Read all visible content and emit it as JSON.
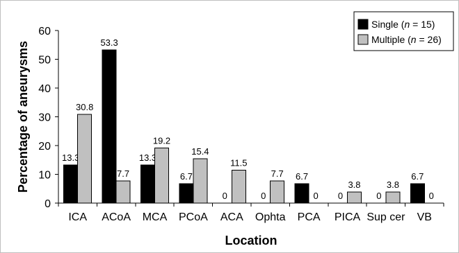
{
  "chart_data": {
    "type": "bar",
    "title": "",
    "xlabel": "Location",
    "ylabel": "Percentage of aneurysms",
    "ylim": [
      0,
      60
    ],
    "yticks": [
      0,
      10,
      20,
      30,
      40,
      50,
      60
    ],
    "legend_position": "top-right",
    "categories": [
      "ICA",
      "ACoA",
      "MCA",
      "PCoA",
      "ACA",
      "Ophta",
      "PCA",
      "PICA",
      "Sup cer",
      "VB"
    ],
    "series": [
      {
        "name": "Single (n = 15)",
        "legend_parts": {
          "prefix": "Single (",
          "italic": "n",
          "suffix": " = 15)"
        },
        "color": "#000000",
        "values": [
          13.3,
          53.3,
          13.3,
          6.7,
          0,
          0,
          6.7,
          0,
          0,
          6.7
        ],
        "labels": [
          "13.3",
          "53.3",
          "13.3",
          "6.7",
          "0",
          "0",
          "6.7",
          "0",
          "0",
          "6.7"
        ]
      },
      {
        "name": "Multiple (n = 26)",
        "legend_parts": {
          "prefix": "Multiple (",
          "italic": "n",
          "suffix": " = 26)"
        },
        "color": "#c0c0c0",
        "values": [
          30.8,
          7.7,
          19.2,
          15.4,
          11.5,
          7.7,
          0,
          3.8,
          3.8,
          0
        ],
        "labels": [
          "30.8",
          "7.7",
          "19.2",
          "15.4",
          "11.5",
          "7.7",
          "0",
          "3.8",
          "3.8",
          "0"
        ]
      }
    ]
  }
}
